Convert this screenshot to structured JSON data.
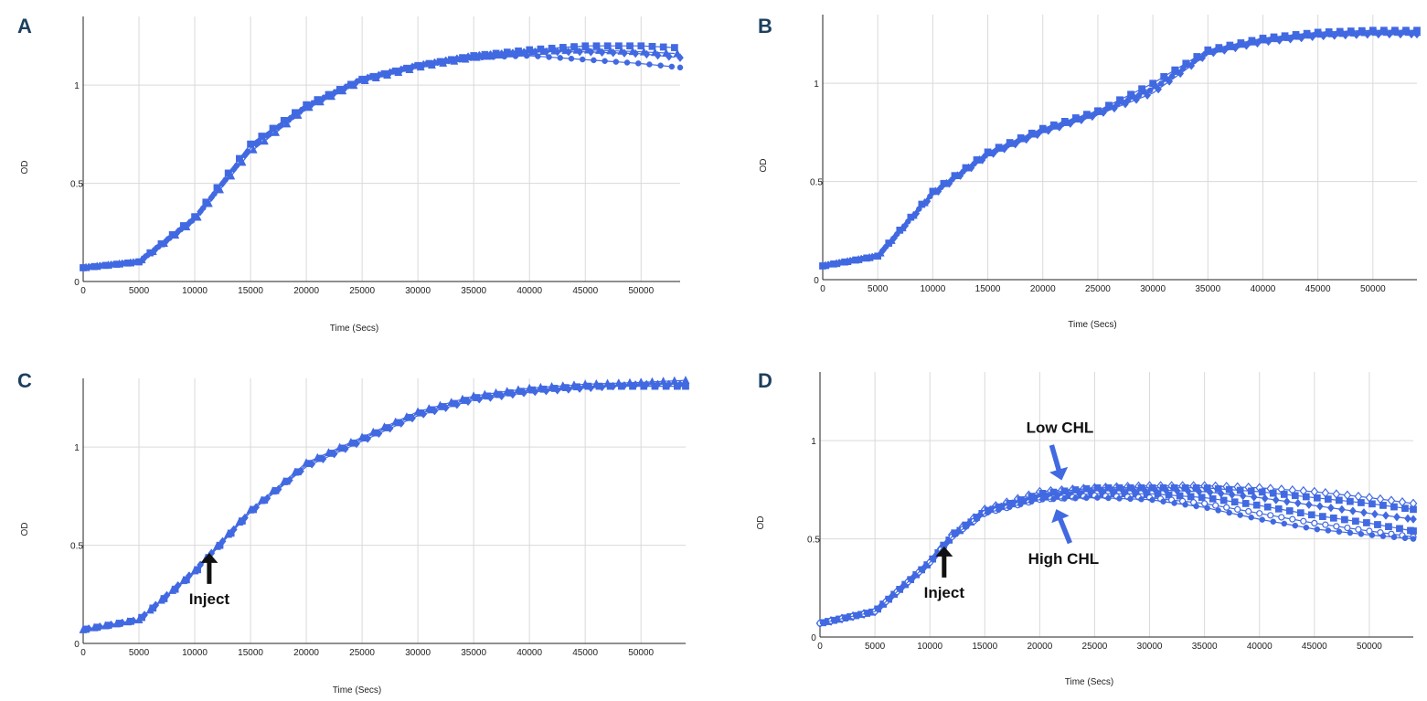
{
  "colors": {
    "series": "#4169e1",
    "grid": "#d9d9d9",
    "axis": "#222222",
    "annotation_arrow": "#111111",
    "panel_letter": "#1d3f5e"
  },
  "chart_data": [
    {
      "panel": "A",
      "type": "line",
      "xlabel": "Time (Secs)",
      "ylabel": "OD",
      "xlim": [
        0,
        53500
      ],
      "ylim": [
        0,
        1.35
      ],
      "xticks": [
        0,
        5000,
        10000,
        15000,
        20000,
        25000,
        30000,
        35000,
        40000,
        45000,
        50000
      ],
      "yticks": [
        0,
        0.5,
        1
      ],
      "ytick_labels": [
        "0",
        "0.5",
        "1"
      ],
      "grid": true,
      "x": [
        0,
        5000,
        10000,
        15000,
        20000,
        25000,
        30000,
        35000,
        40000,
        45000,
        50000,
        53500
      ],
      "series": [
        {
          "values": [
            0.07,
            0.1,
            0.33,
            0.7,
            0.9,
            1.03,
            1.1,
            1.15,
            1.18,
            1.2,
            1.2,
            1.19
          ],
          "marker": "square"
        },
        {
          "values": [
            0.07,
            0.1,
            0.31,
            0.66,
            0.88,
            1.02,
            1.09,
            1.14,
            1.17,
            1.18,
            1.17,
            1.16
          ],
          "marker": "triangle"
        },
        {
          "values": [
            0.07,
            0.1,
            0.32,
            0.68,
            0.89,
            1.03,
            1.1,
            1.15,
            1.17,
            1.17,
            1.16,
            1.14
          ],
          "marker": "diamond"
        },
        {
          "values": [
            0.07,
            0.1,
            0.32,
            0.68,
            0.89,
            1.03,
            1.1,
            1.14,
            1.15,
            1.13,
            1.11,
            1.09
          ],
          "marker": "circle"
        }
      ]
    },
    {
      "panel": "B",
      "type": "line",
      "xlabel": "Time (Secs)",
      "ylabel": "OD",
      "xlim": [
        0,
        54000
      ],
      "ylim": [
        0,
        1.35
      ],
      "xticks": [
        0,
        5000,
        10000,
        15000,
        20000,
        25000,
        30000,
        35000,
        40000,
        45000,
        50000
      ],
      "yticks": [
        0,
        0.5,
        1
      ],
      "ytick_labels": [
        "0",
        "0.5",
        "1"
      ],
      "grid": true,
      "x": [
        0,
        5000,
        10000,
        15000,
        20000,
        25000,
        30000,
        35000,
        40000,
        45000,
        50000,
        54000
      ],
      "series": [
        {
          "values": [
            0.07,
            0.12,
            0.45,
            0.65,
            0.77,
            0.86,
            1.0,
            1.17,
            1.23,
            1.26,
            1.27,
            1.27
          ],
          "marker": "square"
        },
        {
          "values": [
            0.07,
            0.12,
            0.44,
            0.64,
            0.76,
            0.85,
            0.98,
            1.16,
            1.22,
            1.25,
            1.26,
            1.26
          ],
          "marker": "triangle"
        },
        {
          "values": [
            0.07,
            0.12,
            0.43,
            0.63,
            0.75,
            0.84,
            0.95,
            1.15,
            1.21,
            1.24,
            1.25,
            1.25
          ],
          "marker": "diamond"
        },
        {
          "values": [
            0.07,
            0.12,
            0.44,
            0.64,
            0.76,
            0.85,
            0.97,
            1.16,
            1.22,
            1.25,
            1.26,
            1.26
          ],
          "marker": "circle"
        }
      ]
    },
    {
      "panel": "C",
      "type": "line",
      "xlabel": "Time (Secs)",
      "ylabel": "OD",
      "xlim": [
        0,
        54000
      ],
      "ylim": [
        0,
        1.35
      ],
      "xticks": [
        0,
        5000,
        10000,
        15000,
        20000,
        25000,
        30000,
        35000,
        40000,
        45000,
        50000
      ],
      "yticks": [
        0,
        0.5,
        1
      ],
      "ytick_labels": [
        "0",
        "0.5",
        "1"
      ],
      "grid": true,
      "x": [
        0,
        5000,
        10000,
        15000,
        20000,
        25000,
        30000,
        35000,
        40000,
        45000,
        50000,
        54000
      ],
      "series": [
        {
          "values": [
            0.07,
            0.12,
            0.37,
            0.68,
            0.92,
            1.05,
            1.18,
            1.26,
            1.3,
            1.32,
            1.33,
            1.34
          ],
          "marker": "triangle"
        },
        {
          "values": [
            0.07,
            0.12,
            0.36,
            0.67,
            0.91,
            1.04,
            1.17,
            1.25,
            1.29,
            1.31,
            1.31,
            1.31
          ],
          "marker": "square"
        },
        {
          "values": [
            0.07,
            0.12,
            0.37,
            0.67,
            0.9,
            1.03,
            1.16,
            1.24,
            1.28,
            1.3,
            1.32,
            1.32
          ],
          "marker": "diamond"
        }
      ],
      "annotations": [
        {
          "text": "Inject",
          "x": 11300,
          "y": 0.48
        }
      ]
    },
    {
      "panel": "D",
      "type": "line",
      "xlabel": "Time (Secs)",
      "ylabel": "OD",
      "xlim": [
        0,
        54000
      ],
      "ylim": [
        0,
        1.35
      ],
      "xticks": [
        0,
        5000,
        10000,
        15000,
        20000,
        25000,
        30000,
        35000,
        40000,
        45000,
        50000
      ],
      "yticks": [
        0,
        0.5,
        1
      ],
      "ytick_labels": [
        "0",
        "0.5",
        "1"
      ],
      "grid": true,
      "x": [
        0,
        5000,
        10000,
        12000,
        15000,
        20000,
        25000,
        30000,
        35000,
        40000,
        45000,
        50000,
        54000
      ],
      "series": [
        {
          "values": [
            0.07,
            0.13,
            0.38,
            0.52,
            0.65,
            0.74,
            0.76,
            0.77,
            0.77,
            0.76,
            0.74,
            0.71,
            0.68
          ],
          "marker": "diamond-open"
        },
        {
          "values": [
            0.07,
            0.13,
            0.38,
            0.52,
            0.64,
            0.73,
            0.76,
            0.76,
            0.76,
            0.74,
            0.71,
            0.68,
            0.65
          ],
          "marker": "square"
        },
        {
          "values": [
            0.07,
            0.13,
            0.38,
            0.51,
            0.64,
            0.72,
            0.75,
            0.75,
            0.74,
            0.71,
            0.67,
            0.63,
            0.6
          ],
          "marker": "diamond"
        },
        {
          "values": [
            0.07,
            0.13,
            0.38,
            0.51,
            0.64,
            0.71,
            0.73,
            0.73,
            0.71,
            0.67,
            0.62,
            0.58,
            0.54
          ],
          "marker": "square"
        },
        {
          "values": [
            0.07,
            0.13,
            0.38,
            0.51,
            0.63,
            0.7,
            0.72,
            0.71,
            0.68,
            0.63,
            0.58,
            0.54,
            0.51
          ],
          "marker": "circle-open"
        },
        {
          "values": [
            0.07,
            0.13,
            0.38,
            0.51,
            0.63,
            0.7,
            0.71,
            0.7,
            0.66,
            0.6,
            0.55,
            0.52,
            0.5
          ],
          "marker": "circle"
        }
      ],
      "annotations": [
        {
          "text": "Inject",
          "x": 11300,
          "y": 0.48
        },
        {
          "text": "Low CHL",
          "x": 22000,
          "y": 0.78
        },
        {
          "text": "High CHL",
          "x": 21500,
          "y": 0.67
        }
      ]
    }
  ]
}
